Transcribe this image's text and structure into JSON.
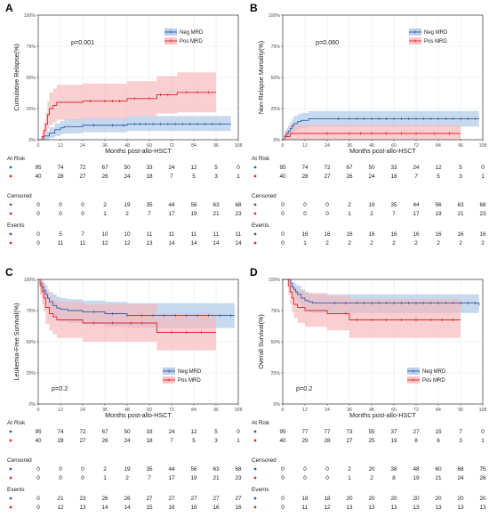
{
  "colors": {
    "neg": "#2f5fa6",
    "pos": "#e0262b",
    "neg_band": "#a9c4e6",
    "pos_band": "#f7b6b8",
    "grid": "#e6e6e6",
    "border": "#333333"
  },
  "chart_data": [
    {
      "panel": "A",
      "type": "line",
      "ylabel": "Cumulative Relapse(%)",
      "xlabel": "Months post-allo-HSCT",
      "xlim": [
        0,
        108
      ],
      "x_ticks": [
        0,
        12,
        24,
        36,
        48,
        60,
        72,
        84,
        96,
        108
      ],
      "ylim": [
        0,
        100
      ],
      "y_ticks": [
        "0%",
        "25%",
        "50%",
        "75%",
        "100%"
      ],
      "grid": true,
      "pvalue": "p=0.001",
      "legend_position": "top-right",
      "legend": [
        "Neg MRD",
        "Pos MRD"
      ],
      "series": [
        {
          "name": "Neg MRD",
          "color_key": "neg",
          "x": [
            0,
            3,
            6,
            9,
            12,
            14,
            24,
            34,
            48,
            60,
            104
          ],
          "y": [
            0,
            3,
            5.3,
            8,
            9.5,
            10.5,
            11.6,
            11.6,
            12.6,
            12.6,
            12.6
          ],
          "lower": [
            0,
            0,
            1.5,
            3,
            4.5,
            5,
            6,
            6,
            7,
            7,
            7
          ],
          "upper": [
            0,
            7,
            10,
            13,
            15,
            16.5,
            17.5,
            17.5,
            19,
            19,
            19
          ],
          "censor": [
            30,
            40,
            46,
            52,
            55,
            58,
            62,
            66,
            70,
            74,
            78,
            82,
            86,
            90,
            94,
            98
          ]
        },
        {
          "name": "Pos MRD",
          "color_key": "pos",
          "x": [
            0,
            2,
            3,
            4,
            5,
            6,
            8,
            10,
            14,
            24,
            48,
            64,
            75,
            96
          ],
          "y": [
            0,
            2.5,
            7.5,
            12.5,
            20,
            25,
            27.5,
            30,
            30,
            31,
            33,
            36,
            38,
            38
          ],
          "lower": [
            0,
            0,
            1,
            4,
            9,
            12,
            14,
            16,
            16,
            17,
            19,
            21,
            22,
            22
          ],
          "upper": [
            0,
            7,
            14,
            22,
            31,
            38,
            41,
            44,
            44,
            45,
            47,
            51,
            54,
            54
          ],
          "censor": [
            28,
            36,
            40,
            44,
            52,
            60,
            66,
            70,
            80,
            86,
            92
          ]
        }
      ],
      "risk_table": {
        "at_risk_title": "At Risk",
        "censored_title": "Censored",
        "events_title": "Events",
        "at_risk": [
          [
            "95",
            "74",
            "72",
            "67",
            "50",
            "33",
            "24",
            "12",
            "5",
            "0"
          ],
          [
            "40",
            "28",
            "27",
            "26",
            "24",
            "18",
            "7",
            "5",
            "3",
            "1"
          ]
        ],
        "censored": [
          [
            "0",
            "0",
            "0",
            "2",
            "19",
            "35",
            "44",
            "56",
            "63",
            "68"
          ],
          [
            "0",
            "0",
            "0",
            "1",
            "2",
            "7",
            "17",
            "19",
            "21",
            "23"
          ]
        ],
        "events": [
          [
            "0",
            "5",
            "7",
            "10",
            "10",
            "11",
            "11",
            "11",
            "11",
            "11"
          ],
          [
            "0",
            "11",
            "11",
            "12",
            "12",
            "13",
            "14",
            "14",
            "14",
            "14"
          ]
        ]
      }
    },
    {
      "panel": "B",
      "type": "line",
      "ylabel": "Non-Relapse Mortality(%)",
      "xlabel": "Months post-allo-HSCT",
      "xlim": [
        0,
        108
      ],
      "x_ticks": [
        0,
        12,
        24,
        36,
        48,
        60,
        72,
        84,
        96,
        108
      ],
      "ylim": [
        0,
        100
      ],
      "y_ticks": [
        "0%",
        "25%",
        "50%",
        "75%",
        "100%"
      ],
      "grid": true,
      "pvalue": "p=0.060",
      "legend_position": "top-right",
      "legend": [
        "Neg MRD",
        "Pos MRD"
      ],
      "series": [
        {
          "name": "Neg MRD",
          "color_key": "neg",
          "x": [
            0,
            1,
            2,
            3,
            4,
            5,
            6,
            8,
            10,
            14,
            106
          ],
          "y": [
            0,
            3,
            5,
            7,
            9,
            11,
            13,
            14.5,
            15.5,
            16.8,
            16.8
          ],
          "lower": [
            0,
            0,
            1,
            2.5,
            4,
            5.5,
            7,
            8.5,
            9.5,
            10.5,
            10.5
          ],
          "upper": [
            0,
            6,
            9,
            11.5,
            14,
            16.5,
            19,
            20.5,
            21.5,
            23,
            23
          ],
          "censor": [
            30,
            36,
            40,
            44,
            48,
            52,
            56,
            60,
            64,
            68,
            72,
            76,
            80,
            84,
            88,
            92,
            96,
            100,
            104
          ]
        },
        {
          "name": "Pos MRD",
          "color_key": "pos",
          "x": [
            0,
            1,
            4,
            12,
            96
          ],
          "y": [
            0,
            2.5,
            5,
            5,
            5
          ],
          "lower": [
            0,
            0,
            0,
            0,
            0
          ],
          "upper": [
            0,
            7.5,
            12,
            12,
            12
          ],
          "censor": [
            24,
            36,
            42,
            48,
            56,
            64,
            72,
            82,
            90
          ]
        }
      ],
      "risk_table": {
        "at_risk_title": "At Risk",
        "censored_title": "Censored",
        "events_title": "Events",
        "at_risk": [
          [
            "95",
            "74",
            "72",
            "67",
            "50",
            "33",
            "24",
            "12",
            "5",
            "0"
          ],
          [
            "40",
            "28",
            "27",
            "26",
            "24",
            "18",
            "7",
            "5",
            "3",
            "1"
          ]
        ],
        "censored": [
          [
            "0",
            "0",
            "0",
            "2",
            "19",
            "35",
            "44",
            "56",
            "63",
            "68"
          ],
          [
            "0",
            "0",
            "0",
            "1",
            "2",
            "7",
            "17",
            "19",
            "21",
            "23"
          ]
        ],
        "events": [
          [
            "0",
            "16",
            "16",
            "16",
            "16",
            "16",
            "16",
            "16",
            "16",
            "16"
          ],
          [
            "0",
            "1",
            "2",
            "2",
            "2",
            "2",
            "2",
            "2",
            "2",
            "2"
          ]
        ]
      }
    },
    {
      "panel": "C",
      "type": "line",
      "ylabel": "Leukemia-Free Survival(%)",
      "xlabel": "Months post-allo-HSCT",
      "xlim": [
        0,
        108
      ],
      "x_ticks": [
        0,
        12,
        24,
        36,
        48,
        60,
        72,
        84,
        96,
        108
      ],
      "ylim": [
        0,
        100
      ],
      "y_ticks": [
        "0%",
        "25%",
        "50%",
        "75%",
        "100%"
      ],
      "grid": true,
      "pvalue": "p=0.2",
      "legend_position": "bottom-right",
      "legend": [
        "Neg MRD",
        "Pos MRD"
      ],
      "series": [
        {
          "name": "Neg MRD",
          "color_key": "neg",
          "x": [
            0,
            1,
            2,
            3,
            4,
            5,
            6,
            8,
            10,
            12,
            16,
            24,
            36,
            48,
            60,
            106
          ],
          "y": [
            100,
            97,
            94,
            91,
            88,
            85,
            82,
            79,
            77,
            76,
            75,
            74,
            72.5,
            71,
            71,
            71
          ],
          "lower": [
            100,
            93,
            89,
            85,
            81,
            77,
            73,
            70,
            68,
            66,
            65,
            64,
            62,
            61,
            61,
            61
          ],
          "upper": [
            100,
            100,
            99,
            97,
            95,
            92,
            90,
            88,
            86,
            85,
            84,
            83,
            82,
            81,
            81,
            81
          ],
          "censor": [
            30,
            40,
            48,
            56,
            62,
            68,
            74,
            80,
            86,
            92,
            98,
            104
          ]
        },
        {
          "name": "Pos MRD",
          "color_key": "pos",
          "x": [
            0,
            1,
            2,
            3,
            4,
            6,
            8,
            10,
            24,
            48,
            64,
            96
          ],
          "y": [
            100,
            95,
            90,
            85,
            77.5,
            72.5,
            70,
            67.5,
            65,
            65,
            57.5,
            57.5
          ],
          "lower": [
            100,
            88,
            80,
            74,
            64,
            59,
            56,
            53,
            50,
            50,
            43,
            43
          ],
          "upper": [
            100,
            100,
            99,
            96,
            90,
            86,
            84,
            82,
            80,
            80,
            73,
            73
          ],
          "censor": [
            30,
            40,
            50,
            56,
            72,
            80,
            88
          ]
        }
      ],
      "risk_table": {
        "at_risk_title": "At Risk",
        "censored_title": "Censored",
        "events_title": "Events",
        "at_risk": [
          [
            "95",
            "74",
            "72",
            "67",
            "50",
            "33",
            "24",
            "12",
            "5",
            "0"
          ],
          [
            "40",
            "28",
            "27",
            "26",
            "24",
            "18",
            "7",
            "5",
            "3",
            "1"
          ]
        ],
        "censored": [
          [
            "0",
            "0",
            "0",
            "2",
            "19",
            "35",
            "44",
            "56",
            "63",
            "68"
          ],
          [
            "0",
            "0",
            "0",
            "1",
            "2",
            "7",
            "17",
            "19",
            "21",
            "23"
          ]
        ],
        "events": [
          [
            "0",
            "21",
            "23",
            "26",
            "26",
            "27",
            "27",
            "27",
            "27",
            "27"
          ],
          [
            "0",
            "12",
            "13",
            "14",
            "14",
            "15",
            "16",
            "16",
            "16",
            "16"
          ]
        ]
      }
    },
    {
      "panel": "D",
      "type": "line",
      "ylabel": "Overall Survival(%)",
      "xlabel": "Months post-allo-HSCT",
      "xlim": [
        0,
        108
      ],
      "x_ticks": [
        0,
        12,
        24,
        36,
        48,
        60,
        72,
        84,
        96,
        108
      ],
      "ylim": [
        0,
        100
      ],
      "y_ticks": [
        "0%",
        "25%",
        "50%",
        "75%",
        "100%"
      ],
      "grid": true,
      "pvalue": "p=0.2",
      "legend_position": "bottom-right",
      "legend": [
        "Neg MRD",
        "Pos MRD"
      ],
      "series": [
        {
          "name": "Neg MRD",
          "color_key": "neg",
          "x": [
            0,
            4,
            5,
            6,
            7,
            8,
            10,
            12,
            14,
            16,
            106
          ],
          "y": [
            100,
            97,
            94,
            92,
            90,
            88,
            85,
            83,
            82,
            81,
            79
          ],
          "lower": [
            100,
            93,
            89,
            86,
            83,
            81,
            78,
            76,
            74,
            73,
            71
          ],
          "upper": [
            100,
            100,
            98,
            97,
            96,
            95,
            92,
            90,
            89,
            88,
            87
          ],
          "censor": [
            28,
            34,
            40,
            44,
            48,
            52,
            56,
            60,
            64,
            68,
            72,
            76,
            80,
            84,
            88,
            92,
            96,
            100,
            104
          ]
        },
        {
          "name": "Pos MRD",
          "color_key": "pos",
          "x": [
            0,
            3,
            4,
            5,
            6,
            8,
            12,
            24,
            36,
            96
          ],
          "y": [
            100,
            95,
            90,
            85,
            80,
            77.5,
            75,
            72.5,
            67.5,
            67.5
          ],
          "lower": [
            100,
            88,
            80,
            74,
            69,
            65,
            62,
            59,
            53,
            53
          ],
          "upper": [
            100,
            100,
            99,
            96,
            93,
            91,
            89,
            87,
            84,
            84
          ],
          "censor": [
            34,
            40,
            48,
            56,
            64,
            72,
            80,
            86,
            92
          ]
        }
      ],
      "risk_table": {
        "at_risk_title": "At Risk",
        "censored_title": "Censored",
        "events_title": "Events",
        "at_risk": [
          [
            "95",
            "77",
            "77",
            "73",
            "55",
            "37",
            "27",
            "15",
            "7",
            "0"
          ],
          [
            "40",
            "29",
            "28",
            "27",
            "25",
            "19",
            "8",
            "6",
            "3",
            "1"
          ]
        ],
        "censored": [
          [
            "0",
            "0",
            "0",
            "2",
            "20",
            "38",
            "48",
            "60",
            "68",
            "75"
          ],
          [
            "0",
            "0",
            "0",
            "1",
            "2",
            "8",
            "19",
            "21",
            "24",
            "26"
          ]
        ],
        "events": [
          [
            "0",
            "18",
            "18",
            "20",
            "20",
            "20",
            "20",
            "20",
            "20",
            "20"
          ],
          [
            "0",
            "11",
            "12",
            "13",
            "13",
            "13",
            "13",
            "13",
            "13",
            "13"
          ]
        ]
      }
    }
  ]
}
